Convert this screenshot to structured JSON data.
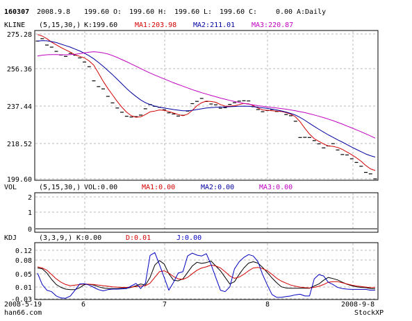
{
  "header": {
    "code": "160307",
    "date": "2008.9.8",
    "open_label": "O:",
    "open": "199.60",
    "high_label": "H:",
    "high": "199.60",
    "low_label": "L:",
    "low": "199.60",
    "close_label": "C:",
    "close": "199.60",
    "change": "0.00",
    "period": "A:Daily"
  },
  "panels": {
    "kline": {
      "title": "KLINE",
      "params": "(5,15,30,)",
      "current": "K:199.60",
      "ma1": "MA1:203.98",
      "ma2": "MA2:211.01",
      "ma3": "MA3:220.87"
    },
    "vol": {
      "title": "VOL",
      "params": "(5,15,30,)",
      "current": "VOL:0.00",
      "ma1": "MA1:0.00",
      "ma2": "MA2:0.00",
      "ma3": "MA3:0.00"
    },
    "kdj": {
      "title": "KDJ",
      "params": "(3,3,9,)",
      "k": "K:0.00",
      "d": "D:0.01",
      "j": "J:0.00"
    }
  },
  "footer": {
    "date_start": "2008-5-19",
    "date_end": "2008-9-8",
    "site": "han66.com",
    "brand": "StockXP"
  },
  "colors": {
    "ma1": "#d40000",
    "ma2": "#0000a0",
    "ma3": "#c000c0",
    "k_line": "#000000",
    "kdj_d": "#d40000",
    "kdj_j": "#0000c0",
    "grid": "#b8b8b8"
  },
  "chart_data": [
    {
      "type": "line",
      "panel": "kline",
      "ylim": [
        199.6,
        275.28
      ],
      "yticks": [
        "275.28",
        "256.36",
        "237.44",
        "218.52",
        "199.60"
      ],
      "xticks": [
        "6",
        "7",
        "8"
      ],
      "price": [
        271.6,
        272.8,
        269.5,
        268.4,
        266.2,
        264.3,
        263.6,
        265.1,
        264.2,
        262.8,
        260.6,
        258.2,
        250.8,
        247.8,
        246.6,
        242.7,
        239.3,
        236.6,
        234.4,
        232.3,
        231.9,
        232.1,
        232.9,
        236.2,
        238.4,
        237.5,
        237.0,
        235.7,
        234.1,
        233.5,
        232.4,
        232.8,
        235.0,
        238.9,
        240.1,
        241.6,
        240.0,
        238.7,
        238.3,
        236.5,
        236.8,
        238.5,
        239.4,
        240.2,
        240.4,
        240.3,
        237.3,
        235.8,
        234.7,
        235.3,
        235.8,
        234.8,
        234.9,
        233.2,
        232.6,
        229.7,
        221.2,
        221.3,
        221.2,
        219.6,
        217.9,
        215.8,
        216.8,
        218.0,
        214.7,
        212.3,
        212.1,
        210.1,
        208.2,
        206.2,
        203.0,
        202.2,
        199.6
      ],
      "series": [
        {
          "name": "MA1",
          "values": [
            275.0,
            274.2,
            272.8,
            271.0,
            269.6,
            268.2,
            267.0,
            265.8,
            264.4,
            263.6,
            262.8,
            261.2,
            259.0,
            254.8,
            250.6,
            246.8,
            243.4,
            240.0,
            237.0,
            234.4,
            232.6,
            231.8,
            232.0,
            233.2,
            234.6,
            235.0,
            235.6,
            235.4,
            234.8,
            234.0,
            233.2,
            232.6,
            233.4,
            235.4,
            237.8,
            239.4,
            240.2,
            240.0,
            239.6,
            238.4,
            237.6,
            237.6,
            237.8,
            238.4,
            239.0,
            238.8,
            237.8,
            236.6,
            235.6,
            235.4,
            235.2,
            235.0,
            234.8,
            234.2,
            233.4,
            232.0,
            229.4,
            226.0,
            223.0,
            220.6,
            219.2,
            217.8,
            216.8,
            216.6,
            216.0,
            215.0,
            213.6,
            212.2,
            210.6,
            208.8,
            206.6,
            204.8,
            203.98
          ]
        },
        {
          "name": "MA2",
          "values": [
            271.6,
            271.8,
            271.7,
            271.3,
            270.8,
            270.0,
            269.2,
            268.4,
            267.4,
            266.4,
            265.2,
            263.9,
            262.3,
            260.4,
            258.4,
            256.2,
            254.0,
            251.6,
            249.2,
            246.8,
            244.6,
            242.6,
            240.8,
            239.4,
            238.4,
            237.6,
            237.0,
            236.6,
            236.2,
            235.8,
            235.5,
            235.2,
            235.2,
            235.4,
            235.8,
            236.2,
            236.6,
            236.8,
            237.0,
            237.1,
            237.2,
            237.3,
            237.4,
            237.5,
            237.6,
            237.5,
            237.3,
            237.0,
            236.7,
            236.4,
            236.0,
            235.6,
            235.1,
            234.5,
            233.8,
            232.9,
            231.7,
            230.2,
            228.6,
            227.0,
            225.5,
            224.0,
            222.6,
            221.3,
            220.0,
            218.8,
            217.5,
            216.2,
            215.0,
            213.8,
            212.6,
            211.7,
            211.01
          ]
        },
        {
          "name": "MA3",
          "values": [
            263.8,
            264.2,
            264.4,
            264.5,
            264.5,
            264.4,
            264.4,
            264.5,
            264.7,
            265.0,
            265.4,
            265.8,
            266.0,
            265.8,
            265.4,
            264.8,
            264.0,
            263.0,
            261.9,
            260.8,
            259.6,
            258.4,
            257.2,
            256.0,
            254.9,
            253.8,
            252.8,
            251.8,
            250.8,
            249.8,
            248.9,
            248.0,
            247.1,
            246.2,
            245.4,
            244.6,
            243.9,
            243.2,
            242.5,
            241.8,
            241.2,
            240.6,
            240.0,
            239.5,
            239.0,
            238.6,
            238.2,
            237.8,
            237.5,
            237.2,
            236.9,
            236.6,
            236.3,
            236.0,
            235.6,
            235.2,
            234.7,
            234.2,
            233.6,
            233.0,
            232.3,
            231.6,
            230.8,
            230.0,
            229.1,
            228.2,
            227.2,
            226.2,
            225.2,
            224.2,
            223.1,
            222.0,
            220.87
          ]
        }
      ]
    },
    {
      "type": "line",
      "panel": "vol",
      "ylim": [
        0,
        2
      ],
      "yticks": [
        "2",
        "1",
        "0"
      ],
      "series": [
        {
          "name": "VOL",
          "values": [
            0
          ]
        },
        {
          "name": "MA1",
          "values": [
            0
          ]
        },
        {
          "name": "MA2",
          "values": [
            0
          ]
        },
        {
          "name": "MA3",
          "values": [
            0
          ]
        }
      ]
    },
    {
      "type": "line",
      "panel": "kdj",
      "ylim": [
        -0.03,
        0.14
      ],
      "yticks": [
        "0.12",
        "0.08",
        "0.05",
        "0.01",
        "-0.03"
      ],
      "xticks": [
        "6",
        "7",
        "8"
      ],
      "series": [
        {
          "name": "K",
          "values": [
            0.078,
            0.075,
            0.06,
            0.038,
            0.02,
            0.01,
            0.004,
            0.002,
            0.002,
            0.009,
            0.02,
            0.021,
            0.018,
            0.012,
            0.008,
            0.006,
            0.006,
            0.006,
            0.007,
            0.007,
            0.01,
            0.016,
            0.022,
            0.018,
            0.045,
            0.088,
            0.104,
            0.092,
            0.058,
            0.035,
            0.033,
            0.04,
            0.062,
            0.085,
            0.098,
            0.094,
            0.097,
            0.102,
            0.085,
            0.068,
            0.045,
            0.022,
            0.03,
            0.056,
            0.078,
            0.095,
            0.1,
            0.095,
            0.08,
            0.062,
            0.043,
            0.026,
            0.012,
            0.008,
            0.007,
            0.007,
            0.007,
            0.007,
            0.007,
            0.015,
            0.022,
            0.035,
            0.045,
            0.041,
            0.036,
            0.028,
            0.021,
            0.016,
            0.012,
            0.01,
            0.009,
            0.006,
            0.005
          ]
        },
        {
          "name": "D",
          "values": [
            0.082,
            0.078,
            0.07,
            0.055,
            0.04,
            0.028,
            0.02,
            0.016,
            0.018,
            0.02,
            0.022,
            0.021,
            0.02,
            0.018,
            0.016,
            0.014,
            0.012,
            0.011,
            0.01,
            0.01,
            0.011,
            0.013,
            0.015,
            0.016,
            0.025,
            0.045,
            0.065,
            0.068,
            0.06,
            0.048,
            0.04,
            0.038,
            0.045,
            0.058,
            0.07,
            0.078,
            0.082,
            0.088,
            0.085,
            0.078,
            0.065,
            0.05,
            0.042,
            0.046,
            0.056,
            0.068,
            0.078,
            0.08,
            0.076,
            0.068,
            0.056,
            0.042,
            0.032,
            0.025,
            0.018,
            0.014,
            0.011,
            0.009,
            0.008,
            0.01,
            0.014,
            0.02,
            0.028,
            0.03,
            0.03,
            0.026,
            0.022,
            0.018,
            0.015,
            0.013,
            0.011,
            0.009,
            0.01
          ]
        },
        {
          "name": "J",
          "values": [
            0.06,
            0.02,
            0.0,
            -0.005,
            -0.02,
            -0.027,
            -0.028,
            -0.02,
            0.0,
            0.022,
            0.023,
            0.018,
            0.01,
            0.002,
            -0.002,
            0.002,
            0.004,
            0.004,
            0.005,
            0.006,
            0.015,
            0.024,
            0.006,
            0.025,
            0.122,
            0.132,
            0.09,
            0.045,
            0.0,
            0.028,
            0.06,
            0.065,
            0.12,
            0.13,
            0.123,
            0.12,
            0.128,
            0.09,
            0.045,
            0.0,
            -0.005,
            0.012,
            0.075,
            0.1,
            0.115,
            0.125,
            0.12,
            0.1,
            0.055,
            0.018,
            -0.015,
            -0.025,
            -0.025,
            -0.022,
            -0.02,
            -0.016,
            -0.014,
            -0.02,
            -0.02,
            0.04,
            0.055,
            0.05,
            0.028,
            0.02,
            0.01,
            0.006,
            0.004,
            0.003,
            0.003,
            0.003,
            0.003,
            0.0,
            0.0
          ]
        }
      ]
    }
  ]
}
